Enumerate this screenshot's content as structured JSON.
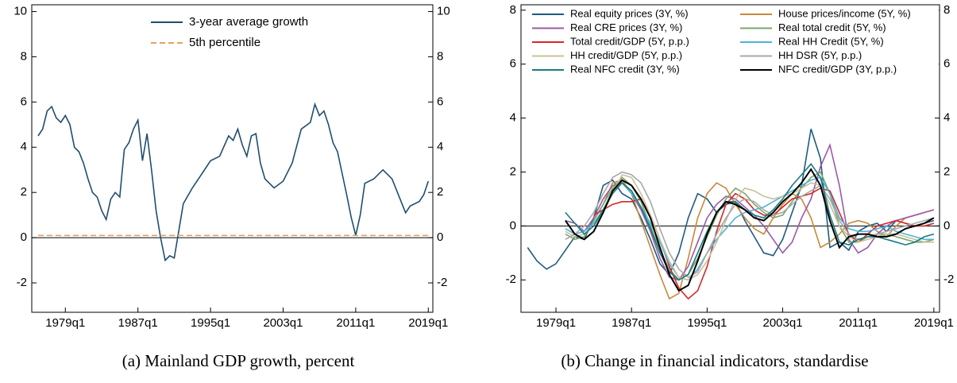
{
  "chart_data": [
    {
      "type": "line",
      "caption": "(a) Mainland GDP growth, percent",
      "x": [
        1976.0,
        1976.5,
        1977.0,
        1977.5,
        1978.0,
        1978.5,
        1979.0,
        1979.5,
        1980.0,
        1980.5,
        1981.0,
        1981.5,
        1982.0,
        1982.5,
        1983.0,
        1983.5,
        1984.0,
        1984.5,
        1985.0,
        1985.5,
        1986.0,
        1986.5,
        1987.0,
        1987.5,
        1988.0,
        1988.5,
        1989.0,
        1989.5,
        1990.0,
        1990.5,
        1991.0,
        1991.5,
        1992.0,
        1993.0,
        1994.0,
        1995.0,
        1996.0,
        1997.0,
        1997.5,
        1998.0,
        1998.5,
        1999.0,
        1999.5,
        2000.0,
        2000.5,
        2001.0,
        2002.0,
        2003.0,
        2004.0,
        2005.0,
        2006.0,
        2006.5,
        2007.0,
        2007.5,
        2008.0,
        2008.5,
        2009.0,
        2010.0,
        2010.5,
        2011.0,
        2011.5,
        2012.0,
        2013.0,
        2014.0,
        2015.0,
        2016.0,
        2016.5,
        2017.0,
        2018.0,
        2018.5,
        2019.0
      ],
      "series": [
        {
          "name": "3-year average growth",
          "color": "#1f4e6e",
          "values": [
            4.5,
            4.8,
            5.6,
            5.8,
            5.3,
            5.1,
            5.4,
            5.0,
            4.0,
            3.8,
            3.3,
            2.6,
            2.0,
            1.8,
            1.2,
            0.8,
            1.7,
            2.0,
            1.8,
            3.9,
            4.2,
            4.8,
            5.2,
            3.4,
            4.6,
            3.0,
            1.2,
            0.0,
            -1.0,
            -0.8,
            -0.9,
            0.3,
            1.5,
            2.2,
            2.8,
            3.4,
            3.6,
            4.5,
            4.3,
            4.8,
            4.1,
            3.6,
            4.5,
            4.6,
            3.3,
            2.6,
            2.2,
            2.5,
            3.3,
            4.8,
            5.1,
            5.9,
            5.4,
            5.6,
            5.0,
            4.2,
            3.8,
            1.9,
            0.9,
            0.1,
            1.0,
            2.4,
            2.6,
            3.0,
            2.6,
            1.6,
            1.1,
            1.4,
            1.6,
            1.9,
            2.5
          ]
        },
        {
          "name": "5th percentile",
          "color": "#e8a060",
          "dashed": true,
          "values": [
            0.1,
            0.1,
            0.1,
            0.1,
            0.1,
            0.1,
            0.1,
            0.1,
            0.1,
            0.1,
            0.1,
            0.1,
            0.1,
            0.1,
            0.1,
            0.1,
            0.1,
            0.1,
            0.1,
            0.1,
            0.1,
            0.1,
            0.1,
            0.1,
            0.1,
            0.1,
            0.1,
            0.1,
            0.1,
            0.1,
            0.1,
            0.1,
            0.1,
            0.1,
            0.1,
            0.1,
            0.1,
            0.1,
            0.1,
            0.1,
            0.1,
            0.1,
            0.1,
            0.1,
            0.1,
            0.1,
            0.1,
            0.1,
            0.1,
            0.1,
            0.1,
            0.1,
            0.1,
            0.1,
            0.1,
            0.1,
            0.1,
            0.1,
            0.1,
            0.1,
            0.1,
            0.1,
            0.1,
            0.1,
            0.1,
            0.1,
            0.1,
            0.1,
            0.1,
            0.1,
            0.1
          ]
        }
      ],
      "xlim": [
        1975.3,
        2019.5
      ],
      "xticks": [
        {
          "value": 1979,
          "label": "1979q1"
        },
        {
          "value": 1987,
          "label": "1987q1"
        },
        {
          "value": 1995,
          "label": "1995q1"
        },
        {
          "value": 2003,
          "label": "2003q1"
        },
        {
          "value": 2011,
          "label": "2011q1"
        },
        {
          "value": 2019,
          "label": "2019q1"
        }
      ],
      "ylim": [
        -3.3,
        10.3
      ],
      "yticks": [
        -2,
        0,
        2,
        4,
        6,
        8,
        10
      ],
      "y2lim": [
        -3.3,
        10.3
      ],
      "y2ticks": [
        -2,
        0,
        2,
        4,
        6,
        8,
        10
      ],
      "zero_line": true,
      "legend": "top",
      "legend_columns": 1
    },
    {
      "type": "line",
      "caption": "(b) Change in financial indicators, standardise",
      "x": [
        1976,
        1977,
        1978,
        1979,
        1980,
        1981,
        1982,
        1983,
        1984,
        1985,
        1986,
        1987,
        1988,
        1989,
        1990,
        1991,
        1992,
        1993,
        1994,
        1995,
        1996,
        1997,
        1998,
        1999,
        2000,
        2001,
        2002,
        2003,
        2004,
        2005,
        2006,
        2007,
        2008,
        2009,
        2010,
        2011,
        2012,
        2013,
        2014,
        2015,
        2016,
        2017,
        2018,
        2019
      ],
      "series": [
        {
          "name": "Real equity prices (3Y, %)",
          "color": "#1f5a80",
          "values": [
            -0.8,
            -1.3,
            -1.6,
            -1.4,
            -0.9,
            -0.4,
            -0.5,
            0.3,
            1.5,
            1.7,
            1.2,
            1.0,
            0.3,
            -0.5,
            -1.4,
            -1.8,
            -1.0,
            0.3,
            1.2,
            1.0,
            0.5,
            0.8,
            0.9,
            0.2,
            -0.4,
            -1.0,
            -1.1,
            -0.5,
            0.5,
            1.5,
            3.6,
            2.5,
            -0.8,
            -0.6,
            -0.9,
            -0.2,
            0.0,
            0.1,
            -0.2,
            0.2,
            0.1,
            0.0,
            0.1,
            0.2
          ]
        },
        {
          "name": "House prices/income (5Y, %)",
          "color": "#c8883a",
          "values": [
            null,
            null,
            null,
            null,
            null,
            null,
            null,
            0.2,
            0.8,
            1.6,
            1.7,
            1.2,
            0.2,
            -0.8,
            -1.8,
            -2.7,
            -2.5,
            -1.2,
            0.3,
            1.2,
            1.6,
            1.4,
            0.8,
            0.3,
            -0.1,
            -0.3,
            0.3,
            0.8,
            1.2,
            1.0,
            0.3,
            -0.8,
            -0.6,
            -0.3,
            0.1,
            0.2,
            0.1,
            -0.2,
            -0.4,
            0.0,
            0.3,
            0.4,
            0.5,
            0.6
          ]
        },
        {
          "name": "Real CRE prices (3Y, %)",
          "color": "#9b59a6",
          "values": [
            null,
            null,
            null,
            null,
            0.2,
            0.1,
            -0.2,
            0.3,
            1.0,
            1.5,
            1.6,
            1.2,
            0.6,
            -0.2,
            -1.2,
            -1.9,
            -2.0,
            -1.5,
            -0.6,
            0.3,
            0.8,
            1.1,
            1.0,
            0.7,
            0.4,
            0.0,
            -0.5,
            -1.0,
            -0.6,
            0.3,
            1.0,
            2.2,
            3.0,
            1.5,
            -0.5,
            -1.0,
            -0.8,
            -0.3,
            0.0,
            0.2,
            0.3,
            0.4,
            0.5,
            0.6
          ]
        },
        {
          "name": "Real total credit (5Y, %)",
          "color": "#7aa86a",
          "values": [
            null,
            null,
            null,
            null,
            -0.3,
            -0.5,
            -0.4,
            0.2,
            0.8,
            1.4,
            1.8,
            1.5,
            0.9,
            0.0,
            -0.9,
            -1.6,
            -2.0,
            -1.8,
            -1.2,
            -0.4,
            0.4,
            1.0,
            1.4,
            1.2,
            0.8,
            0.5,
            0.3,
            0.4,
            0.9,
            1.4,
            1.8,
            2.0,
            1.2,
            0.0,
            -0.6,
            -0.6,
            -0.4,
            -0.3,
            -0.3,
            -0.4,
            -0.5,
            -0.6,
            -0.6,
            -0.5
          ]
        },
        {
          "name": "Total credit/GDP (5Y, p.p.)",
          "color": "#d62728",
          "values": [
            null,
            null,
            null,
            null,
            null,
            null,
            null,
            0.4,
            0.6,
            0.8,
            0.9,
            0.9,
            1.0,
            0.4,
            -0.5,
            -1.5,
            -2.3,
            -2.7,
            -2.4,
            -1.5,
            -0.2,
            0.8,
            1.2,
            1.0,
            0.6,
            0.4,
            0.4,
            0.7,
            1.0,
            1.1,
            1.2,
            1.4,
            1.3,
            0.5,
            -0.3,
            -0.6,
            -0.3,
            0.0,
            0.1,
            0.2,
            0.1,
            0.0,
            0.0,
            0.1
          ]
        },
        {
          "name": "Real HH Credit (5Y, %)",
          "color": "#4fb3d9",
          "values": [
            null,
            null,
            null,
            null,
            -0.1,
            -0.3,
            -0.2,
            0.1,
            0.6,
            1.3,
            1.6,
            1.2,
            0.7,
            0.1,
            -0.6,
            -1.4,
            -1.9,
            -2.0,
            -1.6,
            -1.0,
            -0.5,
            -0.1,
            0.3,
            0.5,
            0.6,
            0.7,
            0.9,
            1.1,
            1.3,
            1.5,
            1.7,
            1.8,
            1.2,
            0.3,
            -0.1,
            -0.2,
            -0.2,
            -0.1,
            0.0,
            -0.2,
            -0.3,
            -0.4,
            -0.5,
            -0.5
          ]
        },
        {
          "name": "HH credit/GDP (5Y, p.p.)",
          "color": "#c9c09a",
          "values": [
            null,
            null,
            null,
            null,
            -0.2,
            -0.4,
            -0.3,
            0.0,
            0.5,
            1.2,
            1.9,
            1.8,
            1.2,
            0.4,
            -0.5,
            -1.3,
            -1.9,
            -2.0,
            -1.8,
            -1.3,
            -0.6,
            0.2,
            1.0,
            1.4,
            1.3,
            1.1,
            1.0,
            1.1,
            1.2,
            1.4,
            1.6,
            1.5,
            0.8,
            0.0,
            -0.4,
            -0.6,
            -0.5,
            -0.4,
            -0.3,
            -0.3,
            -0.4,
            -0.5,
            -0.6,
            -0.6
          ]
        },
        {
          "name": "HH DSR (5Y, p.p.)",
          "color": "#a8a8a8",
          "values": [
            null,
            null,
            null,
            null,
            -0.5,
            -0.3,
            0.0,
            0.5,
            1.2,
            1.8,
            2.0,
            1.9,
            1.6,
            0.9,
            -0.1,
            -1.0,
            -1.6,
            -1.9,
            -1.7,
            -1.0,
            -0.3,
            0.3,
            0.8,
            1.0,
            0.9,
            0.6,
            0.4,
            0.5,
            0.8,
            1.1,
            1.3,
            1.5,
            1.0,
            0.2,
            -0.3,
            -0.5,
            -0.4,
            -0.3,
            -0.2,
            -0.1,
            0.0,
            0.1,
            0.2,
            0.3
          ]
        },
        {
          "name": "Real NFC credit (3Y, %)",
          "color": "#1a7a80",
          "values": [
            null,
            null,
            null,
            null,
            0.5,
            0.1,
            -0.3,
            0.0,
            0.6,
            1.2,
            1.6,
            1.3,
            0.7,
            -0.1,
            -1.0,
            -1.7,
            -2.0,
            -1.8,
            -1.0,
            -0.2,
            0.5,
            0.9,
            0.9,
            0.6,
            0.4,
            0.3,
            0.6,
            1.0,
            1.5,
            1.9,
            2.3,
            1.8,
            0.4,
            -0.6,
            -0.7,
            -0.5,
            -0.4,
            -0.4,
            -0.5,
            -0.6,
            -0.7,
            -0.6,
            -0.4,
            -0.3
          ]
        },
        {
          "name": "NFC credit/GDP (3Y, p.p.)",
          "color": "#000000",
          "values": [
            null,
            null,
            null,
            null,
            0.2,
            -0.3,
            -0.5,
            -0.2,
            0.5,
            1.3,
            1.7,
            1.5,
            1.0,
            0.3,
            -0.8,
            -1.8,
            -2.4,
            -2.2,
            -1.3,
            -0.3,
            0.5,
            0.9,
            0.8,
            0.6,
            0.3,
            0.2,
            0.5,
            0.9,
            1.2,
            1.6,
            2.1,
            1.5,
            0.2,
            -0.8,
            -0.4,
            -0.3,
            -0.3,
            -0.4,
            -0.4,
            -0.3,
            -0.1,
            0.0,
            0.1,
            0.3
          ]
        }
      ],
      "xlim": [
        1975.3,
        2019.6
      ],
      "xticks": [
        {
          "value": 1979,
          "label": "1979q1"
        },
        {
          "value": 1987,
          "label": "1987q1"
        },
        {
          "value": 1995,
          "label": "1995q1"
        },
        {
          "value": 2003,
          "label": "2003q1"
        },
        {
          "value": 2011,
          "label": "2011q1"
        },
        {
          "value": 2019,
          "label": "2019q1"
        }
      ],
      "ylim": [
        -3.2,
        8.2
      ],
      "yticks": [
        -2,
        0,
        2,
        4,
        6,
        8
      ],
      "y2lim": [
        -3.2,
        8.2
      ],
      "y2ticks": [
        -2,
        0,
        2,
        4,
        6,
        8
      ],
      "zero_line": true,
      "legend": "top",
      "legend_columns": 2
    }
  ]
}
